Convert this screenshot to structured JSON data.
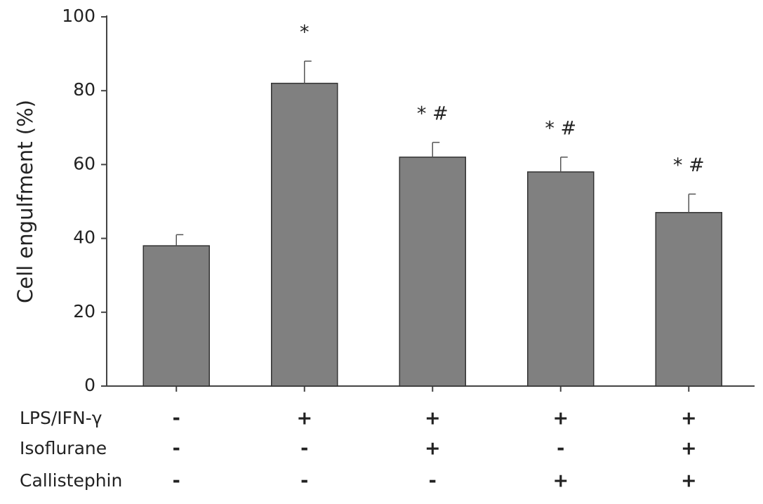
{
  "chart_data": {
    "type": "bar",
    "y_label": "Cell engulfment (%)",
    "categories": [
      null,
      null,
      null,
      null,
      null
    ],
    "values": [
      38,
      82,
      62,
      58,
      47
    ],
    "errors": [
      3,
      6,
      4,
      4,
      5
    ],
    "significance": [
      null,
      "*",
      "* #",
      "* #",
      "* #"
    ],
    "color": "#808080",
    "ylim": [
      0,
      100
    ],
    "yticks": [
      0,
      20,
      40,
      60,
      80,
      100
    ],
    "conditions": [
      {
        "name": "LPS/IFN-γ",
        "signs": [
          "-",
          "+",
          "+",
          "+",
          "+"
        ]
      },
      {
        "name": "Isoflurane",
        "signs": [
          "-",
          "-",
          "+",
          "-",
          "+"
        ]
      },
      {
        "name": "Callistephin",
        "signs": [
          "-",
          "-",
          "-",
          "+",
          "+"
        ]
      }
    ]
  }
}
